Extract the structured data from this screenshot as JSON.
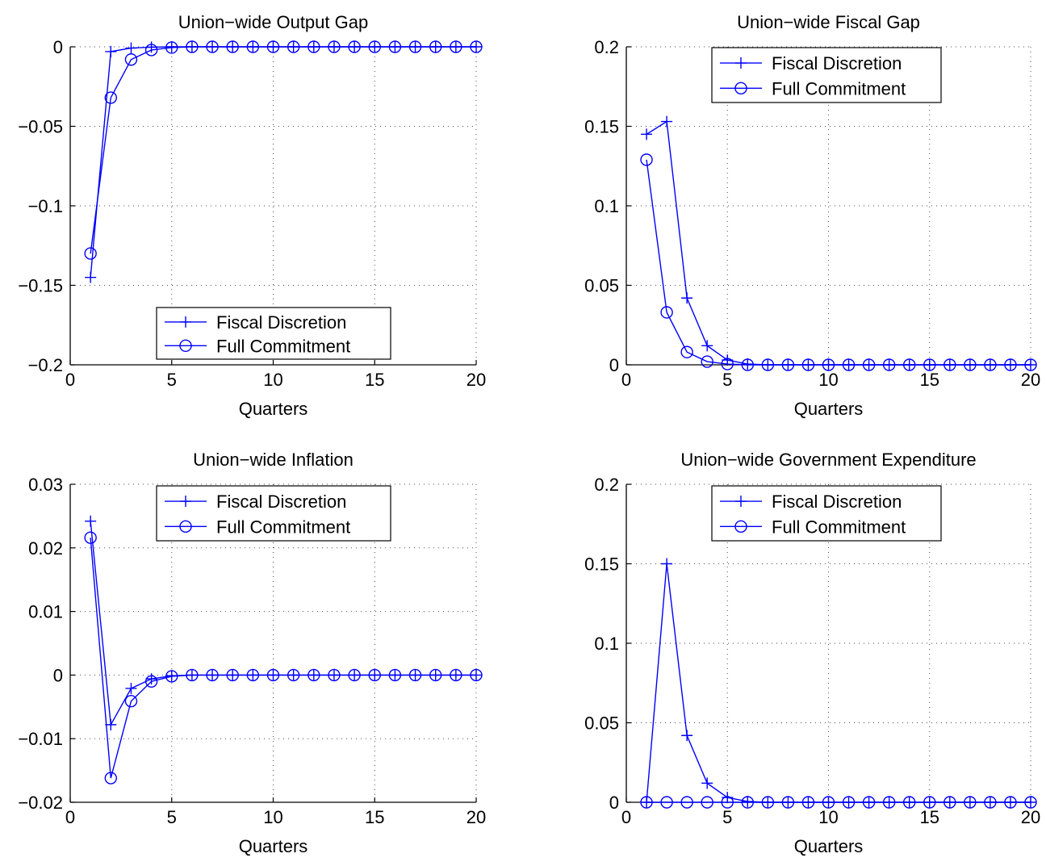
{
  "chart_data": [
    {
      "type": "line",
      "title": "Union−wide Output Gap",
      "xlabel": "Quarters",
      "ylabel": "",
      "xlim": [
        0,
        20
      ],
      "ylim": [
        -0.2,
        0
      ],
      "xticks": [
        0,
        5,
        10,
        15,
        20
      ],
      "yticks": [
        -0.2,
        -0.15,
        -0.1,
        -0.05,
        0
      ],
      "xtick_labels": [
        "0",
        "5",
        "10",
        "15",
        "20"
      ],
      "ytick_labels": [
        "−0.2",
        "−0.15",
        "−0.1",
        "−0.05",
        "0"
      ],
      "grid": true,
      "legend_position": "bottom-center",
      "x": [
        1,
        2,
        3,
        4,
        5,
        6,
        7,
        8,
        9,
        10,
        11,
        12,
        13,
        14,
        15,
        16,
        17,
        18,
        19,
        20
      ],
      "series": [
        {
          "name": "Fiscal Discretion",
          "marker": "plus",
          "values": [
            -0.145,
            -0.003,
            -0.0008,
            -0.0002,
            0,
            0,
            0,
            0,
            0,
            0,
            0,
            0,
            0,
            0,
            0,
            0,
            0,
            0,
            0,
            0
          ]
        },
        {
          "name": "Full Commitment",
          "marker": "circle",
          "values": [
            -0.13,
            -0.032,
            -0.008,
            -0.002,
            -0.0005,
            0,
            0,
            0,
            0,
            0,
            0,
            0,
            0,
            0,
            0,
            0,
            0,
            0,
            0,
            0
          ]
        }
      ]
    },
    {
      "type": "line",
      "title": "Union−wide Fiscal Gap",
      "xlabel": "Quarters",
      "ylabel": "",
      "xlim": [
        0,
        20
      ],
      "ylim": [
        0,
        0.2
      ],
      "xticks": [
        0,
        5,
        10,
        15,
        20
      ],
      "yticks": [
        0,
        0.05,
        0.1,
        0.15,
        0.2
      ],
      "xtick_labels": [
        "0",
        "5",
        "10",
        "15",
        "20"
      ],
      "ytick_labels": [
        "0",
        "0.05",
        "0.1",
        "0.15",
        "0.2"
      ],
      "grid": true,
      "legend_position": "top-center",
      "x": [
        1,
        2,
        3,
        4,
        5,
        6,
        7,
        8,
        9,
        10,
        11,
        12,
        13,
        14,
        15,
        16,
        17,
        18,
        19,
        20
      ],
      "series": [
        {
          "name": "Fiscal Discretion",
          "marker": "plus",
          "values": [
            0.145,
            0.153,
            0.042,
            0.012,
            0.003,
            0.0005,
            0,
            0,
            0,
            0,
            0,
            0,
            0,
            0,
            0,
            0,
            0,
            0,
            0,
            0
          ]
        },
        {
          "name": "Full Commitment",
          "marker": "circle",
          "values": [
            0.129,
            0.033,
            0.008,
            0.002,
            0.0005,
            0,
            0,
            0,
            0,
            0,
            0,
            0,
            0,
            0,
            0,
            0,
            0,
            0,
            0,
            0
          ]
        }
      ]
    },
    {
      "type": "line",
      "title": "Union−wide Inflation",
      "xlabel": "Quarters",
      "ylabel": "",
      "xlim": [
        0,
        20
      ],
      "ylim": [
        -0.02,
        0.03
      ],
      "xticks": [
        0,
        5,
        10,
        15,
        20
      ],
      "yticks": [
        -0.02,
        -0.01,
        0,
        0.01,
        0.02,
        0.03
      ],
      "xtick_labels": [
        "0",
        "5",
        "10",
        "15",
        "20"
      ],
      "ytick_labels": [
        "−0.02",
        "−0.01",
        "0",
        "0.01",
        "0.02",
        "0.03"
      ],
      "grid": true,
      "legend_position": "top-center",
      "x": [
        1,
        2,
        3,
        4,
        5,
        6,
        7,
        8,
        9,
        10,
        11,
        12,
        13,
        14,
        15,
        16,
        17,
        18,
        19,
        20
      ],
      "series": [
        {
          "name": "Fiscal Discretion",
          "marker": "plus",
          "values": [
            0.0242,
            -0.0078,
            -0.0021,
            -0.0006,
            -0.0001,
            0,
            0,
            0,
            0,
            0,
            0,
            0,
            0,
            0,
            0,
            0,
            0,
            0,
            0,
            0
          ]
        },
        {
          "name": "Full Commitment",
          "marker": "circle",
          "values": [
            0.0216,
            -0.0162,
            -0.0041,
            -0.001,
            -0.0002,
            0,
            0,
            0,
            0,
            0,
            0,
            0,
            0,
            0,
            0,
            0,
            0,
            0,
            0,
            0
          ]
        }
      ]
    },
    {
      "type": "line",
      "title": "Union−wide Government Expenditure",
      "xlabel": "Quarters",
      "ylabel": "",
      "xlim": [
        0,
        20
      ],
      "ylim": [
        0,
        0.2
      ],
      "xticks": [
        0,
        5,
        10,
        15,
        20
      ],
      "yticks": [
        0,
        0.05,
        0.1,
        0.15,
        0.2
      ],
      "xtick_labels": [
        "0",
        "5",
        "10",
        "15",
        "20"
      ],
      "ytick_labels": [
        "0",
        "0.05",
        "0.1",
        "0.15",
        "0.2"
      ],
      "grid": true,
      "legend_position": "top-center",
      "x": [
        1,
        2,
        3,
        4,
        5,
        6,
        7,
        8,
        9,
        10,
        11,
        12,
        13,
        14,
        15,
        16,
        17,
        18,
        19,
        20
      ],
      "series": [
        {
          "name": "Fiscal Discretion",
          "marker": "plus",
          "values": [
            0,
            0.15,
            0.042,
            0.012,
            0.003,
            0.0005,
            0,
            0,
            0,
            0,
            0,
            0,
            0,
            0,
            0,
            0,
            0,
            0,
            0,
            0
          ]
        },
        {
          "name": "Full Commitment",
          "marker": "circle",
          "values": [
            0,
            0,
            0,
            0,
            0,
            0,
            0,
            0,
            0,
            0,
            0,
            0,
            0,
            0,
            0,
            0,
            0,
            0,
            0,
            0
          ]
        }
      ]
    }
  ],
  "colors": {
    "series": "#0000ff",
    "axes": "#000000",
    "grid": "#000000",
    "background": "#ffffff"
  }
}
